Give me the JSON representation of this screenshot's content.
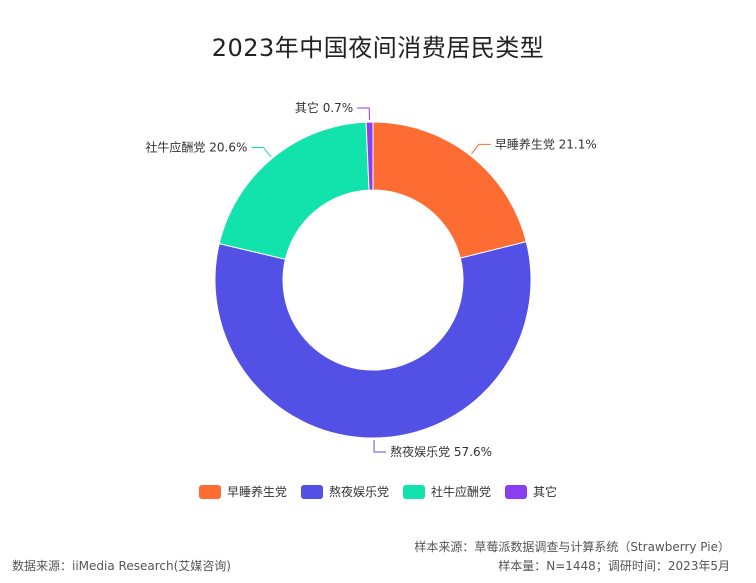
{
  "chart_data": {
    "type": "pie",
    "title": "2023年中国夜间消费居民类型",
    "categories": [
      "早睡养生党",
      "熬夜娱乐党",
      "社牛应酬党",
      "其它"
    ],
    "values": [
      21.1,
      57.6,
      20.6,
      0.7
    ],
    "data_labels": [
      "早睡养生党 21.1%",
      "熬夜娱乐党 57.6%",
      "社牛应酬党 20.6%",
      "其它 0.7%"
    ],
    "colors": [
      "#fd6c32",
      "#5350e6",
      "#12e2ab",
      "#8b3df2"
    ],
    "donut": true,
    "legend_placement": "bottom"
  },
  "footer": {
    "sample_source": "样本来源：草莓派数据调查与计算系统（Strawberry Pie）",
    "sample_size": "样本量：N=1448；调研时间：2023年5月",
    "data_source": "数据来源：iiMedia Research(艾媒咨询)"
  }
}
